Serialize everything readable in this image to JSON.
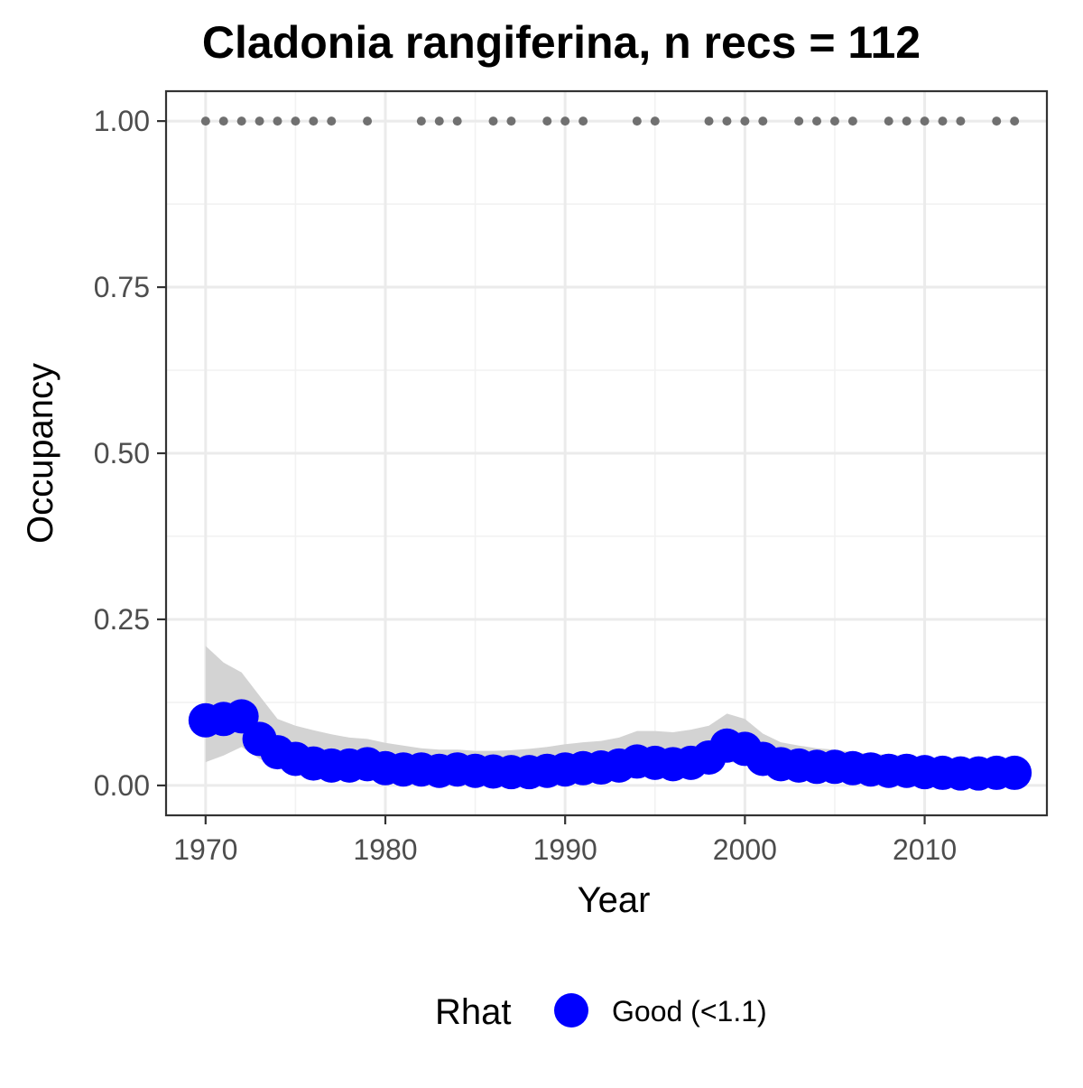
{
  "chart_data": {
    "type": "line",
    "title": "Cladonia rangiferina, n recs = 112",
    "xlabel": "Year",
    "ylabel": "Occupancy",
    "xlim": [
      1967.8,
      2016.8
    ],
    "ylim": [
      -0.045,
      1.045
    ],
    "x_ticks": [
      1970,
      1980,
      1990,
      2000,
      2010
    ],
    "x_tick_labels": [
      "1970",
      "1980",
      "1990",
      "2000",
      "2010"
    ],
    "y_ticks": [
      0,
      0.25,
      0.5,
      0.75,
      1.0
    ],
    "y_tick_labels": [
      "0.00",
      "0.25",
      "0.50",
      "0.75",
      "1.00"
    ],
    "grid": true,
    "legend": {
      "position": "bottom",
      "title": "Rhat",
      "entries": [
        {
          "label": "Good (<1.1)",
          "color": "#0000ff"
        }
      ]
    },
    "colors": {
      "estimate": "#0000ff",
      "ribbon": "#d3d3d3",
      "records": "#707070",
      "panel_border": "#333333",
      "grid_major": "#ebebeb",
      "grid_minor": "#f2f2f2"
    },
    "series": [
      {
        "x": [
          1970,
          1971,
          1972,
          1973,
          1974,
          1975,
          1976,
          1977,
          1978,
          1979,
          1980,
          1981,
          1982,
          1983,
          1984,
          1985,
          1986,
          1987,
          1988,
          1989,
          1990,
          1991,
          1992,
          1993,
          1994,
          1995,
          1996,
          1997,
          1998,
          1999,
          2000,
          2001,
          2002,
          2003,
          2004,
          2005,
          2006,
          2007,
          2008,
          2009,
          2010,
          2011,
          2012,
          2013,
          2014,
          2015
        ],
        "y": [
          0.098,
          0.1,
          0.104,
          0.07,
          0.05,
          0.04,
          0.033,
          0.03,
          0.03,
          0.032,
          0.026,
          0.024,
          0.024,
          0.022,
          0.024,
          0.022,
          0.021,
          0.02,
          0.02,
          0.022,
          0.024,
          0.026,
          0.027,
          0.03,
          0.036,
          0.034,
          0.032,
          0.034,
          0.042,
          0.06,
          0.055,
          0.04,
          0.032,
          0.03,
          0.028,
          0.028,
          0.026,
          0.024,
          0.022,
          0.022,
          0.02,
          0.019,
          0.018,
          0.018,
          0.019,
          0.019
        ],
        "lower": [
          0.035,
          0.045,
          0.058,
          0.04,
          0.028,
          0.022,
          0.018,
          0.016,
          0.016,
          0.017,
          0.013,
          0.012,
          0.012,
          0.011,
          0.012,
          0.011,
          0.01,
          0.01,
          0.01,
          0.011,
          0.012,
          0.013,
          0.014,
          0.016,
          0.019,
          0.018,
          0.017,
          0.018,
          0.024,
          0.036,
          0.032,
          0.022,
          0.017,
          0.016,
          0.015,
          0.015,
          0.013,
          0.012,
          0.011,
          0.011,
          0.01,
          0.009,
          0.009,
          0.009,
          0.009,
          0.009
        ],
        "upper": [
          0.21,
          0.185,
          0.17,
          0.135,
          0.1,
          0.09,
          0.083,
          0.077,
          0.072,
          0.07,
          0.064,
          0.06,
          0.056,
          0.054,
          0.054,
          0.052,
          0.052,
          0.053,
          0.055,
          0.058,
          0.062,
          0.065,
          0.067,
          0.072,
          0.082,
          0.082,
          0.08,
          0.084,
          0.09,
          0.108,
          0.1,
          0.078,
          0.065,
          0.06,
          0.056,
          0.054,
          0.05,
          0.048,
          0.046,
          0.045,
          0.042,
          0.04,
          0.038,
          0.038,
          0.04,
          0.042
        ]
      },
      {
        "x": [
          1970,
          1971,
          1972,
          1973,
          1974,
          1975,
          1976,
          1977,
          1979,
          1982,
          1983,
          1984,
          1986,
          1987,
          1989,
          1990,
          1991,
          1994,
          1995,
          1998,
          1999,
          2000,
          2001,
          2003,
          2004,
          2005,
          2006,
          2008,
          2009,
          2010,
          2011,
          2012,
          2014,
          2015
        ],
        "y": [
          1,
          1,
          1,
          1,
          1,
          1,
          1,
          1,
          1,
          1,
          1,
          1,
          1,
          1,
          1,
          1,
          1,
          1,
          1,
          1,
          1,
          1,
          1,
          1,
          1,
          1,
          1,
          1,
          1,
          1,
          1,
          1,
          1,
          1
        ]
      }
    ]
  }
}
